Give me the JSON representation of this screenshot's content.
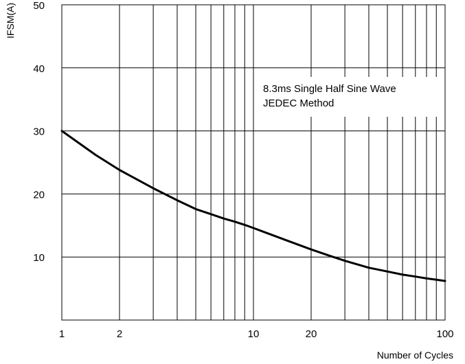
{
  "chart_data": {
    "type": "line",
    "title": "",
    "xlabel": "Number of Cycles",
    "ylabel": "IFSM(A)",
    "x_scale": "log",
    "xlim": [
      1,
      100
    ],
    "ylim": [
      0,
      50
    ],
    "x_ticks": [
      1,
      2,
      10,
      20,
      100
    ],
    "x_tick_labels": [
      "1",
      "2",
      "10",
      "20",
      "100"
    ],
    "y_ticks": [
      10,
      20,
      30,
      40,
      50
    ],
    "y_tick_labels": [
      "10",
      "20",
      "30",
      "40",
      "50"
    ],
    "grid": true,
    "legend": "none",
    "annotation": [
      "8.3ms Single Half Sine Wave",
      "JEDEC Method"
    ],
    "series": [
      {
        "x": [
          1,
          1.5,
          2,
          3,
          4,
          5,
          6,
          7,
          8,
          9,
          10,
          15,
          20,
          25,
          30,
          40,
          50,
          60,
          70,
          80,
          90,
          100
        ],
        "y": [
          30,
          26.2,
          23.8,
          20.9,
          19.0,
          17.6,
          16.8,
          16.1,
          15.6,
          15.1,
          14.6,
          12.6,
          11.2,
          10.2,
          9.4,
          8.3,
          7.7,
          7.2,
          6.9,
          6.6,
          6.4,
          6.2
        ]
      }
    ],
    "colors": {
      "line": "#000000",
      "grid": "#000000",
      "background": "#ffffff"
    }
  }
}
